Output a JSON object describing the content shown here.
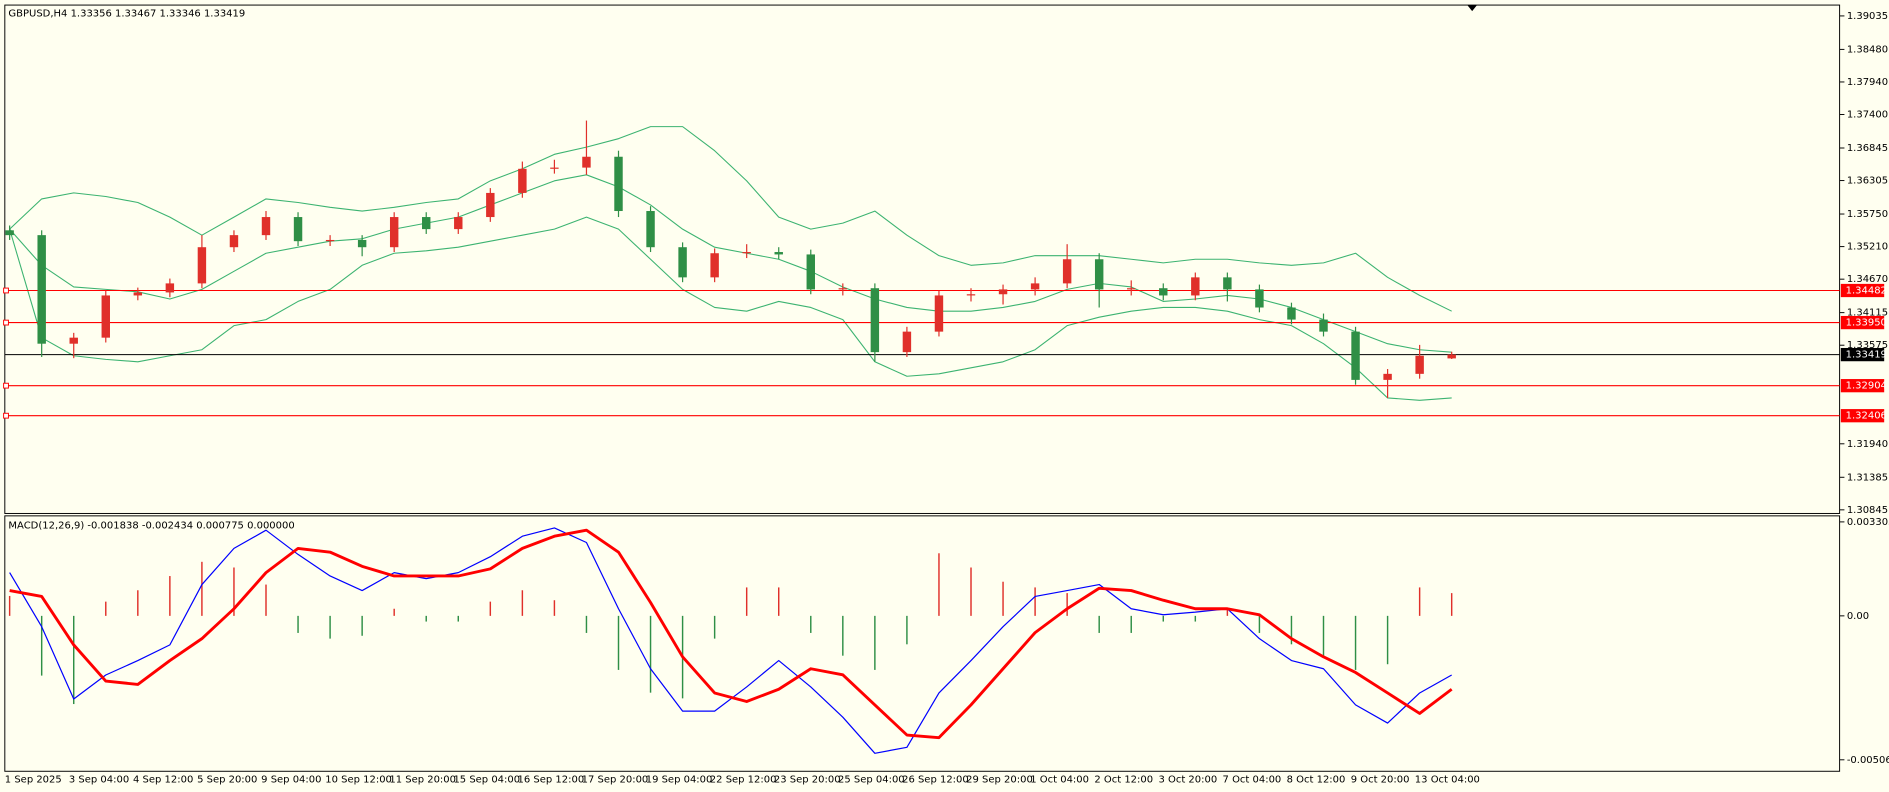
{
  "chart_data": [
    {
      "type": "candlestick",
      "title": "GBPUSD,H4  1.33356 1.33467 1.33346 1.33419",
      "categories": [
        "1 Sep 2025",
        null,
        "3 Sep 04:00",
        null,
        "4 Sep 12:00",
        null,
        "5 Sep 20:00",
        null,
        "9 Sep 04:00",
        null,
        "10 Sep 12:00",
        null,
        "11 Sep 20:00",
        null,
        "15 Sep 04:00",
        null,
        "16 Sep 12:00",
        null,
        "17 Sep 20:00",
        null,
        "19 Sep 04:00",
        null,
        "22 Sep 12:00",
        null,
        "23 Sep 20:00",
        null,
        "25 Sep 04:00",
        null,
        "26 Sep 12:00",
        null,
        "29 Sep 20:00",
        null,
        "1 Oct 04:00",
        null,
        "2 Oct 12:00",
        null,
        "3 Oct 20:00",
        null,
        "7 Oct 04:00",
        null,
        "8 Oct 12:00",
        null,
        "9 Oct 20:00",
        null,
        "13 Oct 04:00",
        null
      ],
      "open": [
        1.3548,
        1.354,
        1.336,
        1.337,
        1.344,
        1.3445,
        1.346,
        1.352,
        1.354,
        1.357,
        1.353,
        1.3532,
        1.352,
        1.357,
        1.355,
        1.357,
        1.361,
        1.365,
        1.3652,
        1.367,
        1.358,
        1.352,
        1.347,
        1.351,
        1.3512,
        1.3508,
        1.345,
        1.3452,
        1.3346,
        1.338,
        1.344,
        1.3442,
        1.345,
        1.346,
        1.35,
        1.345,
        1.3452,
        1.344,
        1.347,
        1.345,
        1.342,
        1.34,
        1.338,
        1.33,
        1.331,
        1.33356
      ],
      "high": [
        1.3556,
        1.3548,
        1.3378,
        1.3448,
        1.3453,
        1.3468,
        1.354,
        1.3548,
        1.358,
        1.3578,
        1.354,
        1.354,
        1.3578,
        1.3578,
        1.3578,
        1.3618,
        1.3662,
        1.3665,
        1.373,
        1.368,
        1.3588,
        1.3528,
        1.3518,
        1.3525,
        1.352,
        1.3516,
        1.346,
        1.346,
        1.3388,
        1.3448,
        1.3452,
        1.3458,
        1.347,
        1.3525,
        1.351,
        1.3465,
        1.346,
        1.3478,
        1.3478,
        1.3458,
        1.3428,
        1.341,
        1.3388,
        1.3318,
        1.3358,
        1.33467
      ],
      "low": [
        1.3532,
        1.3338,
        1.3336,
        1.3362,
        1.3432,
        1.3437,
        1.3452,
        1.3512,
        1.3532,
        1.3522,
        1.3522,
        1.3505,
        1.3512,
        1.3542,
        1.3542,
        1.3562,
        1.3602,
        1.3642,
        1.364,
        1.357,
        1.3512,
        1.3462,
        1.3462,
        1.3502,
        1.35,
        1.3442,
        1.344,
        1.333,
        1.3338,
        1.3372,
        1.343,
        1.3425,
        1.344,
        1.3452,
        1.342,
        1.344,
        1.3432,
        1.3432,
        1.343,
        1.3412,
        1.3392,
        1.3372,
        1.3292,
        1.327,
        1.3302,
        1.33346
      ],
      "close": [
        1.354,
        1.336,
        1.337,
        1.344,
        1.3445,
        1.346,
        1.352,
        1.354,
        1.357,
        1.353,
        1.3532,
        1.352,
        1.357,
        1.355,
        1.357,
        1.361,
        1.365,
        1.3652,
        1.367,
        1.358,
        1.352,
        1.347,
        1.351,
        1.3512,
        1.3508,
        1.345,
        1.3452,
        1.3346,
        1.338,
        1.344,
        1.3442,
        1.345,
        1.346,
        1.35,
        1.345,
        1.3452,
        1.344,
        1.347,
        1.345,
        1.342,
        1.34,
        1.338,
        1.33,
        1.331,
        1.334,
        1.33419
      ],
      "up_color": "#e0302a",
      "down_color": "#2f8f46",
      "upper_band": [
        1.355,
        1.36,
        1.361,
        1.3604,
        1.3594,
        1.357,
        1.354,
        1.357,
        1.36,
        1.3594,
        1.3586,
        1.358,
        1.3586,
        1.3594,
        1.36,
        1.363,
        1.365,
        1.3674,
        1.3686,
        1.37,
        1.372,
        1.372,
        1.368,
        1.363,
        1.357,
        1.355,
        1.356,
        1.358,
        1.354,
        1.3506,
        1.349,
        1.3494,
        1.3506,
        1.3506,
        1.3506,
        1.35,
        1.3494,
        1.35,
        1.35,
        1.3494,
        1.349,
        1.3494,
        1.351,
        1.347,
        1.344,
        1.3414
      ],
      "middle_band": [
        1.355,
        1.349,
        1.3454,
        1.345,
        1.3446,
        1.3434,
        1.345,
        1.348,
        1.351,
        1.352,
        1.353,
        1.3534,
        1.355,
        1.356,
        1.357,
        1.359,
        1.361,
        1.363,
        1.364,
        1.362,
        1.359,
        1.355,
        1.352,
        1.351,
        1.35,
        1.348,
        1.3454,
        1.3434,
        1.342,
        1.3414,
        1.3414,
        1.342,
        1.343,
        1.345,
        1.346,
        1.3454,
        1.343,
        1.3434,
        1.344,
        1.3434,
        1.342,
        1.34,
        1.338,
        1.336,
        1.335,
        1.3346
      ],
      "lower_band": [
        1.355,
        1.337,
        1.334,
        1.3334,
        1.333,
        1.334,
        1.335,
        1.339,
        1.34,
        1.343,
        1.345,
        1.349,
        1.351,
        1.3514,
        1.352,
        1.353,
        1.354,
        1.355,
        1.357,
        1.355,
        1.35,
        1.345,
        1.342,
        1.3414,
        1.343,
        1.342,
        1.34,
        1.333,
        1.3306,
        1.331,
        1.332,
        1.333,
        1.335,
        1.339,
        1.3404,
        1.3414,
        1.342,
        1.342,
        1.3414,
        1.34,
        1.339,
        1.336,
        1.332,
        1.327,
        1.3266,
        1.327
      ],
      "bands_color": "#3cb371",
      "ylim": [
        1.30785,
        1.39215
      ],
      "yticks": [
        1.39035,
        {
          "value": 1.3848,
          "label": "1.38480"
        },
        {
          "value": 1.3794,
          "label": "1.37940"
        },
        {
          "value": 1.374,
          "label": "1.37400"
        },
        1.36845,
        1.36305,
        {
          "value": 1.3575,
          "label": "1.35750"
        },
        {
          "value": 1.3521,
          "label": "1.35210"
        },
        {
          "value": 1.3467,
          "label": "1.34670"
        },
        1.34115,
        1.33575,
        {
          "value": 1.3194,
          "label": "1.31940"
        },
        1.31385,
        1.30845
      ],
      "levels": [
        1.34482,
        {
          "value": 1.3395,
          "label": "1.33950"
        },
        1.32904,
        1.32406
      ],
      "level_color": "#ff0000",
      "current_price": 1.33419
    },
    {
      "type": "macd",
      "title": "MACD(12,26,9) -0.001838 -0.002434 0.000775 0.000000",
      "histogram": [
        0.0007,
        -0.0021,
        -0.0031,
        0.0005,
        0.0009,
        0.0014,
        0.0019,
        0.0017,
        0.0011,
        -0.0006,
        -0.0008,
        -0.0007,
        0.00025,
        -0.0002,
        -0.0002,
        0.0005,
        0.0009,
        0.00055,
        -0.0006,
        -0.0019,
        -0.0027,
        -0.0029,
        -0.0008,
        0.001,
        0.001,
        -0.0006,
        -0.0014,
        -0.0019,
        -0.001,
        0.0022,
        0.0017,
        0.0012,
        0.001,
        0.0008,
        -0.0006,
        -0.0006,
        -0.0002,
        -0.0002,
        0.00025,
        -0.0006,
        -0.001,
        -0.0014,
        -0.0019,
        -0.0017,
        0.001,
        0.0008
      ],
      "histogram_up_color": "#e0302a",
      "histogram_down_color": "#2f8f46",
      "macd": [
        0.00152,
        -0.00038,
        -0.00292,
        -0.00208,
        -0.00157,
        -0.00102,
        0.0011,
        0.00237,
        0.00301,
        0.00216,
        0.0014,
        0.00089,
        0.00152,
        0.00131,
        0.00152,
        0.00208,
        0.0028,
        0.00309,
        0.00258,
        0.00025,
        -0.00186,
        -0.00335,
        -0.00335,
        -0.0025,
        -0.00157,
        -0.0025,
        -0.00356,
        -0.00483,
        -0.00462,
        -0.00271,
        -0.00157,
        -0.00038,
        0.00068,
        0.00089,
        0.0011,
        0.00025,
        4e-05,
        0.00013,
        0.00025,
        -0.0008,
        -0.00157,
        -0.00186,
        -0.00313,
        -0.00377,
        -0.00271,
        -0.00208
      ],
      "macd_color": "#0000ff",
      "signal": [
        0.00089,
        0.00068,
        -0.00102,
        -0.00229,
        -0.00241,
        -0.00157,
        -0.0008,
        0.00025,
        0.00152,
        0.00237,
        0.00224,
        0.00174,
        0.0014,
        0.0014,
        0.0014,
        0.00165,
        0.00237,
        0.0028,
        0.00301,
        0.00224,
        0.00047,
        -0.00144,
        -0.00271,
        -0.00301,
        -0.00258,
        -0.00186,
        -0.00207,
        -0.00313,
        -0.00419,
        -0.00428,
        -0.00313,
        -0.00186,
        -0.00059,
        0.00025,
        0.00097,
        0.00089,
        0.00055,
        0.00025,
        0.00025,
        4e-05,
        -0.0008,
        -0.00144,
        -0.00199,
        -0.00271,
        -0.00343,
        -0.00258
      ],
      "signal_color": "#ff0000",
      "ylim": [
        -0.005463,
        0.003515
      ],
      "yticks": [
        0.003303,
        {
          "value": 0,
          "label": "0.00"
        },
        -0.00506
      ]
    }
  ]
}
